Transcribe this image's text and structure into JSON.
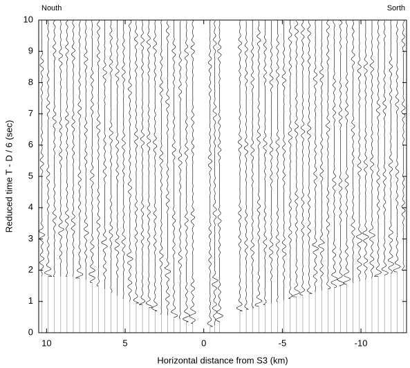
{
  "chart_data": {
    "type": "record-section",
    "x_label": "Horizontal distance from S3 (km)",
    "y_label": "Reduced time T - D / 6 (sec)",
    "annotations": [
      {
        "text": "Nouth",
        "corner": "top-left"
      },
      {
        "text": "Sorth",
        "corner": "top-right"
      }
    ],
    "xlim": [
      10.5,
      -12.9
    ],
    "ylim": [
      0,
      10
    ],
    "xticks": [
      10,
      5,
      0,
      -5,
      -10
    ],
    "yticks": [
      0,
      1,
      2,
      3,
      4,
      5,
      6,
      7,
      8,
      9,
      10
    ],
    "color": "#000000",
    "traces": {
      "x": [
        10.3,
        9.9,
        9.5,
        9.1,
        8.7,
        8.3,
        7.9,
        7.5,
        7.1,
        6.7,
        6.3,
        5.9,
        5.5,
        5.1,
        4.7,
        4.3,
        3.9,
        3.5,
        3.1,
        2.7,
        2.3,
        1.9,
        1.5,
        1.1,
        0.7,
        -0.4,
        -0.7,
        -1.0,
        -2.3,
        -2.7,
        -3.1,
        -3.5,
        -3.9,
        -4.3,
        -4.7,
        -5.1,
        -5.5,
        -5.9,
        -6.3,
        -6.7,
        -7.1,
        -7.5,
        -7.9,
        -8.3,
        -8.7,
        -9.1,
        -9.5,
        -9.9,
        -10.3,
        -10.7,
        -11.1,
        -11.5,
        -11.9,
        -12.3,
        -12.7
      ],
      "onset": [
        1.8,
        1.8,
        1.8,
        1.8,
        1.8,
        1.8,
        1.75,
        1.7,
        1.6,
        1.5,
        1.4,
        1.3,
        1.2,
        1.1,
        1.0,
        0.95,
        0.9,
        0.8,
        0.7,
        0.6,
        0.55,
        0.5,
        0.45,
        0.35,
        0.3,
        0.2,
        0.25,
        0.35,
        0.7,
        0.75,
        0.8,
        0.85,
        0.9,
        0.95,
        1.0,
        1.05,
        1.1,
        1.15,
        1.2,
        1.25,
        1.3,
        1.35,
        1.4,
        1.45,
        1.5,
        1.55,
        1.6,
        1.65,
        1.7,
        1.75,
        1.8,
        1.85,
        1.9,
        1.95,
        2.0
      ]
    }
  }
}
